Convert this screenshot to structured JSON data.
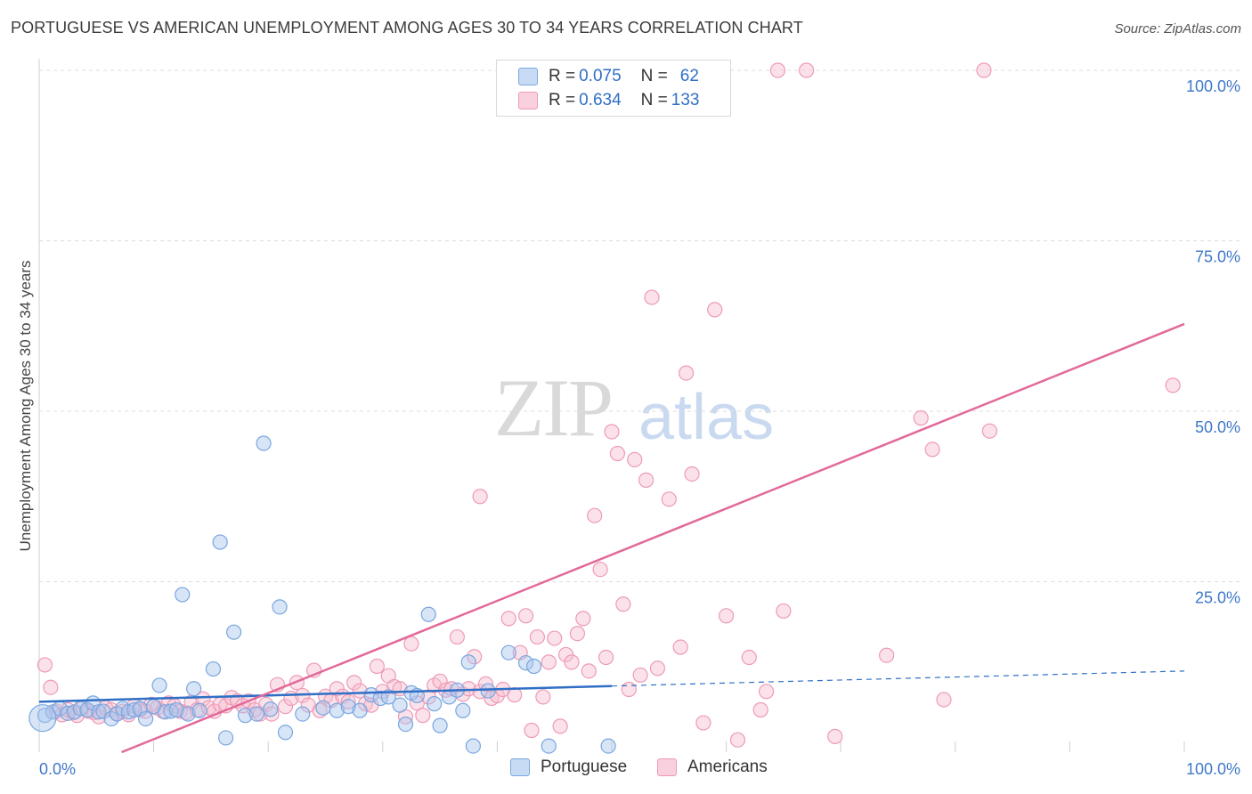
{
  "header": {
    "title": "PORTUGUESE VS AMERICAN UNEMPLOYMENT AMONG AGES 30 TO 34 YEARS CORRELATION CHART",
    "source": "Source: ZipAtlas.com"
  },
  "watermark": {
    "zip": "ZIP",
    "atlas": "atlas"
  },
  "legend": {
    "rows": [
      {
        "r_label": "R = ",
        "r_value": "0.075",
        "n_label": "N = ",
        "n_value": "62"
      },
      {
        "r_label": "R = ",
        "r_value": "0.634",
        "n_label": "N = ",
        "n_value": "133"
      }
    ]
  },
  "bottom_legend": {
    "portuguese": "Portuguese",
    "americans": "Americans"
  },
  "colors": {
    "portuguese_fill": "#a9c6ee",
    "portuguese_stroke": "#7aa6e0",
    "portuguese_line": "#2f6fc6",
    "americans_fill": "#f6bed0",
    "americans_stroke": "#ee9ab5",
    "americans_line": "#e2699a",
    "tick_label": "#3f78c8",
    "grid": "#dddddd"
  },
  "chart_data": {
    "type": "scatter",
    "title": "PORTUGUESE VS AMERICAN UNEMPLOYMENT AMONG AGES 30 TO 34 YEARS CORRELATION CHART",
    "ylabel": "Unemployment Among Ages 30 to 34 years",
    "xlabel": "",
    "xlim": [
      0,
      100
    ],
    "ylim": [
      0,
      100
    ],
    "x_tick_labels": [
      "0.0%",
      "100.0%"
    ],
    "y_tick_labels": [
      "100.0%",
      "75.0%",
      "50.0%",
      "25.0%"
    ],
    "y_ticks": [
      100,
      75,
      50,
      25
    ],
    "grid": true,
    "legend_placement": "top-center",
    "series": [
      {
        "name": "Portuguese",
        "R": 0.075,
        "N": 62,
        "trend": {
          "x0": 0,
          "y0": 7.4,
          "x1": 50,
          "y1": 9.7,
          "dashed_to_x": 100,
          "dashed_to_y": 11.9
        },
        "points": [
          [
            0.5,
            5.4
          ],
          [
            1.2,
            5.9
          ],
          [
            1.8,
            6.4
          ],
          [
            2.5,
            5.7
          ],
          [
            3.1,
            5.9
          ],
          [
            3.6,
            6.4
          ],
          [
            4.2,
            6.2
          ],
          [
            4.7,
            7.2
          ],
          [
            5.2,
            5.9
          ],
          [
            5.6,
            6.0
          ],
          [
            6.3,
            4.9
          ],
          [
            6.8,
            5.6
          ],
          [
            7.3,
            6.4
          ],
          [
            7.8,
            5.9
          ],
          [
            8.3,
            6.2
          ],
          [
            8.8,
            6.4
          ],
          [
            9.3,
            4.9
          ],
          [
            10.0,
            6.7
          ],
          [
            10.5,
            9.8
          ],
          [
            11.0,
            5.9
          ],
          [
            11.5,
            6.0
          ],
          [
            12.0,
            6.2
          ],
          [
            12.5,
            23.1
          ],
          [
            13.0,
            5.6
          ],
          [
            13.5,
            9.3
          ],
          [
            14.0,
            6.1
          ],
          [
            15.2,
            12.2
          ],
          [
            15.8,
            30.8
          ],
          [
            16.3,
            2.1
          ],
          [
            17.0,
            17.6
          ],
          [
            18.0,
            5.4
          ],
          [
            19.0,
            5.6
          ],
          [
            19.6,
            45.3
          ],
          [
            20.2,
            6.3
          ],
          [
            21.0,
            21.3
          ],
          [
            21.5,
            2.9
          ],
          [
            23.0,
            5.6
          ],
          [
            24.8,
            6.5
          ],
          [
            26.0,
            6.1
          ],
          [
            27.0,
            6.7
          ],
          [
            28.0,
            6.1
          ],
          [
            29.0,
            8.4
          ],
          [
            29.8,
            7.9
          ],
          [
            30.5,
            8.1
          ],
          [
            31.5,
            6.9
          ],
          [
            32.0,
            4.1
          ],
          [
            32.5,
            8.7
          ],
          [
            33.0,
            8.3
          ],
          [
            34.0,
            20.2
          ],
          [
            34.5,
            7.1
          ],
          [
            35.0,
            3.9
          ],
          [
            35.8,
            8.1
          ],
          [
            36.5,
            9.1
          ],
          [
            37.0,
            6.1
          ],
          [
            37.5,
            13.2
          ],
          [
            37.9,
            0.9
          ],
          [
            39.2,
            9.0
          ],
          [
            41.0,
            14.6
          ],
          [
            42.5,
            13.1
          ],
          [
            43.2,
            12.6
          ],
          [
            44.5,
            0.9
          ],
          [
            49.7,
            0.9
          ]
        ]
      },
      {
        "name": "Americans",
        "R": 0.634,
        "N": 133,
        "trend": {
          "x0": 7.2,
          "y0": 0.0,
          "x1": 100,
          "y1": 62.8
        },
        "points": [
          [
            0.5,
            12.8
          ],
          [
            1.0,
            9.5
          ],
          [
            1.5,
            6.0
          ],
          [
            2.0,
            5.5
          ],
          [
            2.5,
            6.2
          ],
          [
            3.0,
            5.8
          ],
          [
            3.3,
            5.4
          ],
          [
            3.8,
            6.5
          ],
          [
            4.3,
            6.0
          ],
          [
            4.8,
            5.8
          ],
          [
            5.2,
            5.2
          ],
          [
            5.8,
            6.5
          ],
          [
            6.3,
            6.2
          ],
          [
            6.8,
            5.7
          ],
          [
            7.3,
            6.0
          ],
          [
            7.8,
            5.5
          ],
          [
            8.3,
            6.8
          ],
          [
            8.8,
            6.2
          ],
          [
            9.3,
            6.0
          ],
          [
            9.8,
            7.0
          ],
          [
            10.3,
            6.5
          ],
          [
            10.8,
            6.0
          ],
          [
            11.3,
            7.2
          ],
          [
            11.8,
            6.8
          ],
          [
            12.3,
            6.0
          ],
          [
            12.8,
            5.8
          ],
          [
            13.3,
            7.3
          ],
          [
            13.8,
            6.2
          ],
          [
            14.3,
            7.8
          ],
          [
            14.8,
            6.5
          ],
          [
            15.3,
            6.0
          ],
          [
            15.8,
            7.0
          ],
          [
            16.3,
            6.8
          ],
          [
            16.8,
            8.0
          ],
          [
            17.3,
            7.5
          ],
          [
            17.8,
            6.8
          ],
          [
            18.3,
            7.5
          ],
          [
            18.8,
            6.2
          ],
          [
            19.3,
            5.6
          ],
          [
            19.8,
            7.0
          ],
          [
            20.3,
            5.6
          ],
          [
            20.8,
            9.9
          ],
          [
            21.5,
            6.7
          ],
          [
            22.0,
            7.9
          ],
          [
            22.5,
            10.2
          ],
          [
            23.0,
            8.3
          ],
          [
            23.5,
            6.9
          ],
          [
            24.0,
            12.0
          ],
          [
            24.5,
            6.1
          ],
          [
            25.0,
            8.2
          ],
          [
            25.5,
            7.6
          ],
          [
            26.0,
            9.3
          ],
          [
            26.5,
            8.2
          ],
          [
            27.0,
            7.4
          ],
          [
            27.5,
            10.2
          ],
          [
            28.0,
            9.0
          ],
          [
            28.5,
            7.1
          ],
          [
            29.0,
            6.9
          ],
          [
            29.5,
            12.6
          ],
          [
            30.0,
            8.9
          ],
          [
            30.5,
            11.2
          ],
          [
            31.0,
            9.6
          ],
          [
            31.5,
            9.3
          ],
          [
            32.0,
            5.2
          ],
          [
            32.5,
            15.9
          ],
          [
            33.0,
            7.2
          ],
          [
            33.5,
            5.4
          ],
          [
            34.0,
            8.1
          ],
          [
            34.5,
            9.8
          ],
          [
            35.0,
            10.4
          ],
          [
            35.5,
            9.1
          ],
          [
            36.0,
            9.3
          ],
          [
            36.5,
            16.9
          ],
          [
            37.0,
            8.5
          ],
          [
            37.5,
            9.3
          ],
          [
            38.0,
            14.0
          ],
          [
            38.5,
            8.9
          ],
          [
            39.0,
            10.0
          ],
          [
            39.5,
            7.9
          ],
          [
            40.0,
            8.3
          ],
          [
            40.5,
            9.2
          ],
          [
            41.0,
            19.6
          ],
          [
            41.5,
            8.4
          ],
          [
            42.0,
            14.6
          ],
          [
            42.5,
            20.0
          ],
          [
            43.0,
            3.2
          ],
          [
            43.5,
            16.9
          ],
          [
            44.0,
            8.1
          ],
          [
            44.5,
            13.2
          ],
          [
            45.0,
            16.7
          ],
          [
            45.5,
            3.8
          ],
          [
            46.0,
            14.3
          ],
          [
            46.5,
            13.2
          ],
          [
            47.0,
            17.4
          ],
          [
            47.5,
            19.6
          ],
          [
            48.0,
            11.9
          ],
          [
            48.5,
            34.7
          ],
          [
            49.0,
            26.8
          ],
          [
            49.5,
            13.9
          ],
          [
            50.0,
            47.0
          ],
          [
            50.5,
            43.8
          ],
          [
            51.0,
            21.7
          ],
          [
            51.5,
            9.2
          ],
          [
            52.0,
            42.9
          ],
          [
            52.5,
            11.3
          ],
          [
            53.0,
            39.9
          ],
          [
            53.5,
            66.7
          ],
          [
            54.0,
            12.3
          ],
          [
            55.0,
            37.1
          ],
          [
            56.0,
            15.4
          ],
          [
            56.5,
            55.6
          ],
          [
            57.0,
            40.8
          ],
          [
            58.0,
            4.3
          ],
          [
            59.0,
            64.9
          ],
          [
            60.0,
            20.0
          ],
          [
            61.0,
            1.8
          ],
          [
            62.0,
            13.9
          ],
          [
            63.0,
            6.2
          ],
          [
            63.5,
            8.9
          ],
          [
            65.0,
            20.7
          ],
          [
            69.5,
            2.3
          ],
          [
            74.0,
            14.2
          ],
          [
            77.0,
            49.0
          ],
          [
            78.0,
            44.4
          ],
          [
            79.0,
            7.7
          ],
          [
            83.0,
            47.1
          ],
          [
            99.0,
            53.8
          ],
          [
            38.5,
            37.5
          ],
          [
            47.8,
            100
          ],
          [
            58.5,
            100
          ],
          [
            64.5,
            100
          ],
          [
            67.0,
            100
          ],
          [
            82.5,
            100
          ]
        ]
      }
    ]
  }
}
